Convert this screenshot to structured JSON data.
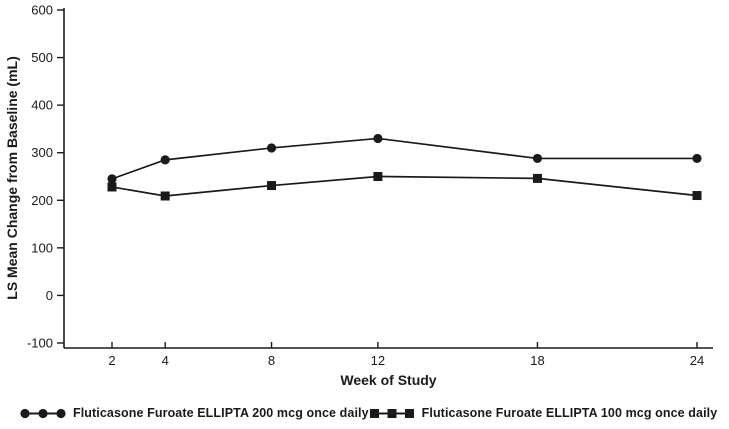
{
  "chart": {
    "title": "",
    "background_color": "#ffffff",
    "line_color": "#1a1a1a"
  },
  "chart_data": {
    "type": "line",
    "x": [
      2,
      4,
      8,
      12,
      18,
      24
    ],
    "xticks": [
      "2",
      "4",
      "8",
      "12",
      "18",
      "24"
    ],
    "yticks": [
      -100,
      0,
      100,
      200,
      300,
      400,
      500,
      600
    ],
    "xlim": [
      2,
      24
    ],
    "ylim": [
      -100,
      600
    ],
    "xlabel": "Week of Study",
    "ylabel": "LS Mean Change from Baseline (mL)",
    "grid": false,
    "legend_position": "bottom",
    "series": [
      {
        "name": "Fluticasone Furoate ELLIPTA 200 mcg once daily",
        "marker": "circle",
        "color": "#1a1a1a",
        "values": [
          245,
          285,
          310,
          330,
          288,
          288
        ]
      },
      {
        "name": "Fluticasone Furoate ELLIPTA 100 mcg once daily",
        "marker": "square",
        "color": "#1a1a1a",
        "values": [
          228,
          209,
          231,
          250,
          246,
          210
        ]
      }
    ]
  }
}
